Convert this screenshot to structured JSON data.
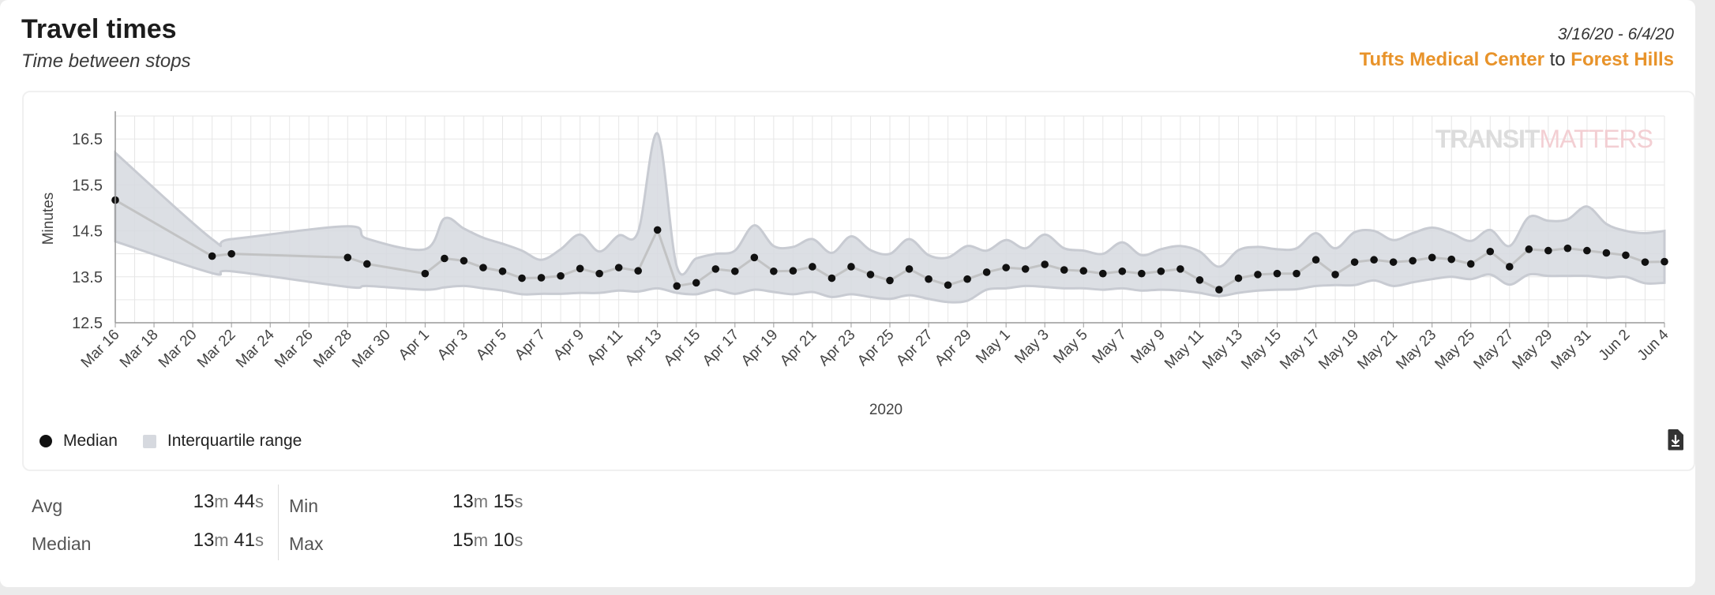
{
  "header": {
    "title": "Travel times",
    "subtitle": "Time between stops",
    "date_range": "3/16/20 - 6/4/20",
    "from_stop": "Tufts Medical Center",
    "connector": "to",
    "to_stop": "Forest Hills"
  },
  "watermark": {
    "part1": "TRANSIT",
    "part2": "MATTERS"
  },
  "legend": {
    "median": "Median",
    "iqr": "Interquartile range"
  },
  "stats": {
    "avg": {
      "label": "Avg",
      "min": "13",
      "min_unit": "m",
      "sec": "44",
      "sec_unit": "s"
    },
    "median": {
      "label": "Median",
      "min": "13",
      "min_unit": "m",
      "sec": "41",
      "sec_unit": "s"
    },
    "min": {
      "label": "Min",
      "min": "13",
      "min_unit": "m",
      "sec": "15",
      "sec_unit": "s"
    },
    "max": {
      "label": "Max",
      "min": "15",
      "min_unit": "m",
      "sec": "10",
      "sec_unit": "s"
    }
  },
  "colors": {
    "accent": "#e8932a",
    "band": "#d6d9df",
    "line": "#bcbcbc",
    "point": "#111111"
  },
  "icons": {
    "download": "download-icon"
  },
  "chart_data": {
    "type": "line",
    "title": "",
    "xlabel": "2020",
    "ylabel": "Minutes",
    "ylim": [
      12.5,
      17.0
    ],
    "yticks": [
      12.5,
      13.5,
      14.5,
      15.5,
      16.5
    ],
    "xlim": [
      "2020-03-16",
      "2020-06-04"
    ],
    "xtick_labels": [
      "Mar 16",
      "Mar 18",
      "Mar 20",
      "Mar 22",
      "Mar 24",
      "Mar 26",
      "Mar 28",
      "Mar 30",
      "Apr 1",
      "Apr 3",
      "Apr 5",
      "Apr 7",
      "Apr 9",
      "Apr 11",
      "Apr 13",
      "Apr 15",
      "Apr 17",
      "Apr 19",
      "Apr 21",
      "Apr 23",
      "Apr 25",
      "Apr 27",
      "Apr 29",
      "May 1",
      "May 3",
      "May 5",
      "May 7",
      "May 9",
      "May 11",
      "May 13",
      "May 15",
      "May 17",
      "May 19",
      "May 21",
      "May 23",
      "May 25",
      "May 27",
      "May 29",
      "May 31",
      "Jun 2",
      "Jun 4"
    ],
    "grid": true,
    "legend_position": "bottom-left",
    "series": [
      {
        "name": "Median",
        "x": [
          "2020-03-16",
          "2020-03-21",
          "2020-03-22",
          "2020-03-28",
          "2020-03-29",
          "2020-04-01",
          "2020-04-02",
          "2020-04-03",
          "2020-04-04",
          "2020-04-05",
          "2020-04-06",
          "2020-04-07",
          "2020-04-08",
          "2020-04-09",
          "2020-04-10",
          "2020-04-11",
          "2020-04-12",
          "2020-04-13",
          "2020-04-14",
          "2020-04-15",
          "2020-04-16",
          "2020-04-17",
          "2020-04-18",
          "2020-04-19",
          "2020-04-20",
          "2020-04-21",
          "2020-04-22",
          "2020-04-23",
          "2020-04-24",
          "2020-04-25",
          "2020-04-26",
          "2020-04-27",
          "2020-04-28",
          "2020-04-29",
          "2020-04-30",
          "2020-05-01",
          "2020-05-02",
          "2020-05-03",
          "2020-05-04",
          "2020-05-05",
          "2020-05-06",
          "2020-05-07",
          "2020-05-08",
          "2020-05-09",
          "2020-05-10",
          "2020-05-11",
          "2020-05-12",
          "2020-05-13",
          "2020-05-14",
          "2020-05-15",
          "2020-05-16",
          "2020-05-17",
          "2020-05-18",
          "2020-05-19",
          "2020-05-20",
          "2020-05-21",
          "2020-05-22",
          "2020-05-23",
          "2020-05-24",
          "2020-05-25",
          "2020-05-26",
          "2020-05-27",
          "2020-05-28",
          "2020-05-29",
          "2020-05-30",
          "2020-05-31",
          "2020-06-01",
          "2020-06-02",
          "2020-06-03",
          "2020-06-04"
        ],
        "values": [
          15.17,
          13.95,
          14.0,
          13.92,
          13.78,
          13.57,
          13.9,
          13.85,
          13.7,
          13.62,
          13.47,
          13.48,
          13.52,
          13.68,
          13.57,
          13.7,
          13.63,
          14.52,
          13.3,
          13.37,
          13.67,
          13.62,
          13.92,
          13.62,
          13.63,
          13.72,
          13.47,
          13.72,
          13.55,
          13.42,
          13.67,
          13.45,
          13.32,
          13.45,
          13.6,
          13.7,
          13.67,
          13.77,
          13.65,
          13.63,
          13.57,
          13.62,
          13.57,
          13.62,
          13.67,
          13.43,
          13.22,
          13.47,
          13.55,
          13.57,
          13.57,
          13.87,
          13.55,
          13.82,
          13.87,
          13.82,
          13.85,
          13.92,
          13.88,
          13.78,
          14.05,
          13.72,
          14.1,
          14.07,
          14.12,
          14.07,
          14.02,
          13.97,
          13.82,
          13.83
        ]
      },
      {
        "name": "Interquartile range",
        "x": [
          "2020-03-16",
          "2020-03-21",
          "2020-03-22",
          "2020-03-28",
          "2020-03-29",
          "2020-04-01",
          "2020-04-02",
          "2020-04-03",
          "2020-04-04",
          "2020-04-05",
          "2020-04-06",
          "2020-04-07",
          "2020-04-08",
          "2020-04-09",
          "2020-04-10",
          "2020-04-11",
          "2020-04-12",
          "2020-04-13",
          "2020-04-14",
          "2020-04-15",
          "2020-04-16",
          "2020-04-17",
          "2020-04-18",
          "2020-04-19",
          "2020-04-20",
          "2020-04-21",
          "2020-04-22",
          "2020-04-23",
          "2020-04-24",
          "2020-04-25",
          "2020-04-26",
          "2020-04-27",
          "2020-04-28",
          "2020-04-29",
          "2020-04-30",
          "2020-05-01",
          "2020-05-02",
          "2020-05-03",
          "2020-05-04",
          "2020-05-05",
          "2020-05-06",
          "2020-05-07",
          "2020-05-08",
          "2020-05-09",
          "2020-05-10",
          "2020-05-11",
          "2020-05-12",
          "2020-05-13",
          "2020-05-14",
          "2020-05-15",
          "2020-05-16",
          "2020-05-17",
          "2020-05-18",
          "2020-05-19",
          "2020-05-20",
          "2020-05-21",
          "2020-05-22",
          "2020-05-23",
          "2020-05-24",
          "2020-05-25",
          "2020-05-26",
          "2020-05-27",
          "2020-05-28",
          "2020-05-29",
          "2020-05-30",
          "2020-05-31",
          "2020-06-01",
          "2020-06-02",
          "2020-06-03",
          "2020-06-04"
        ],
        "q1": [
          14.27,
          13.58,
          13.62,
          13.28,
          13.3,
          13.22,
          13.27,
          13.3,
          13.25,
          13.2,
          13.12,
          13.13,
          13.13,
          13.15,
          13.15,
          13.2,
          13.18,
          13.25,
          13.15,
          13.12,
          13.22,
          13.13,
          13.22,
          13.17,
          13.12,
          13.17,
          13.06,
          13.12,
          13.06,
          13.02,
          13.1,
          13.02,
          12.95,
          12.98,
          13.22,
          13.25,
          13.3,
          13.28,
          13.25,
          13.25,
          13.22,
          13.25,
          13.2,
          13.22,
          13.2,
          13.15,
          13.08,
          13.15,
          13.2,
          13.22,
          13.23,
          13.3,
          13.32,
          13.32,
          13.42,
          13.3,
          13.38,
          13.45,
          13.5,
          13.45,
          13.55,
          13.33,
          13.55,
          13.52,
          13.52,
          13.52,
          13.48,
          13.5,
          13.36,
          13.37
        ],
        "q3": [
          16.2,
          14.32,
          14.32,
          14.6,
          14.33,
          14.1,
          14.77,
          14.55,
          14.35,
          14.22,
          14.07,
          13.87,
          14.1,
          14.42,
          14.05,
          14.4,
          14.48,
          16.62,
          13.72,
          13.9,
          14.0,
          14.07,
          14.62,
          14.17,
          14.15,
          14.32,
          14.02,
          14.38,
          14.08,
          14.0,
          14.32,
          13.97,
          13.92,
          14.17,
          14.07,
          14.3,
          14.12,
          14.42,
          14.12,
          14.07,
          14.0,
          14.25,
          13.97,
          14.1,
          14.17,
          14.05,
          13.72,
          14.08,
          14.15,
          14.1,
          14.12,
          14.45,
          14.12,
          14.47,
          14.5,
          14.3,
          14.45,
          14.57,
          14.45,
          14.28,
          14.52,
          14.17,
          14.8,
          14.72,
          14.75,
          15.03,
          14.65,
          14.5,
          14.45,
          14.5
        ]
      }
    ]
  }
}
